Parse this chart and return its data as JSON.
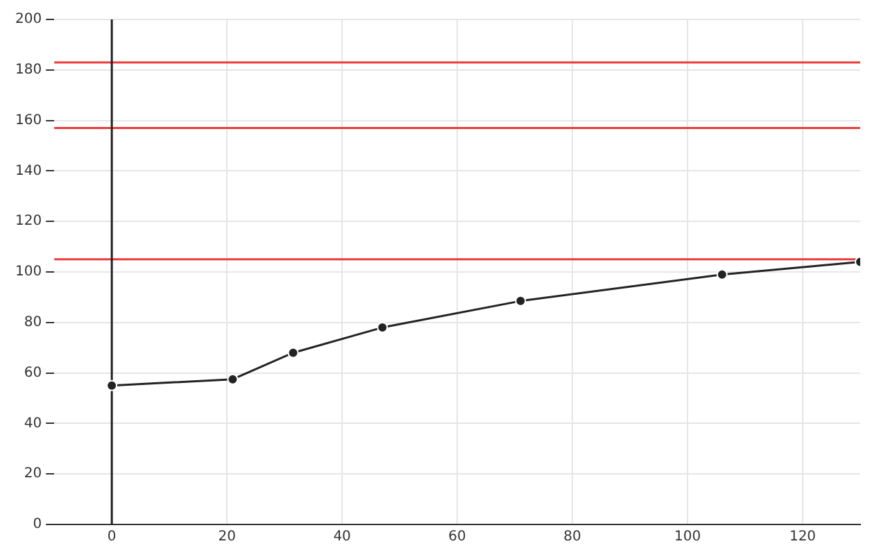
{
  "chart_data": {
    "type": "line",
    "x": [
      0,
      21,
      31.5,
      47,
      71,
      106,
      130
    ],
    "series": [
      {
        "color": "#222222",
        "values": [
          55,
          57.5,
          68,
          78,
          88.5,
          99,
          104
        ]
      }
    ],
    "xlim": [
      -10,
      130
    ],
    "xticks": [
      0,
      20,
      40,
      60,
      80,
      100,
      120
    ],
    "ylim": [
      0,
      200
    ],
    "yticks": [
      0,
      20,
      40,
      60,
      80,
      100,
      120,
      140,
      160,
      180,
      200
    ],
    "ref_lines": [
      {
        "axis": "y",
        "value": 183,
        "color": "#ee3b3b"
      },
      {
        "axis": "y",
        "value": 157,
        "color": "#ee3b3b"
      },
      {
        "axis": "y",
        "value": 105,
        "color": "#ee3b3b"
      },
      {
        "axis": "x",
        "value": 0,
        "color": "#222222"
      }
    ],
    "grid": true,
    "marker": "circle",
    "line_style": "solid"
  }
}
